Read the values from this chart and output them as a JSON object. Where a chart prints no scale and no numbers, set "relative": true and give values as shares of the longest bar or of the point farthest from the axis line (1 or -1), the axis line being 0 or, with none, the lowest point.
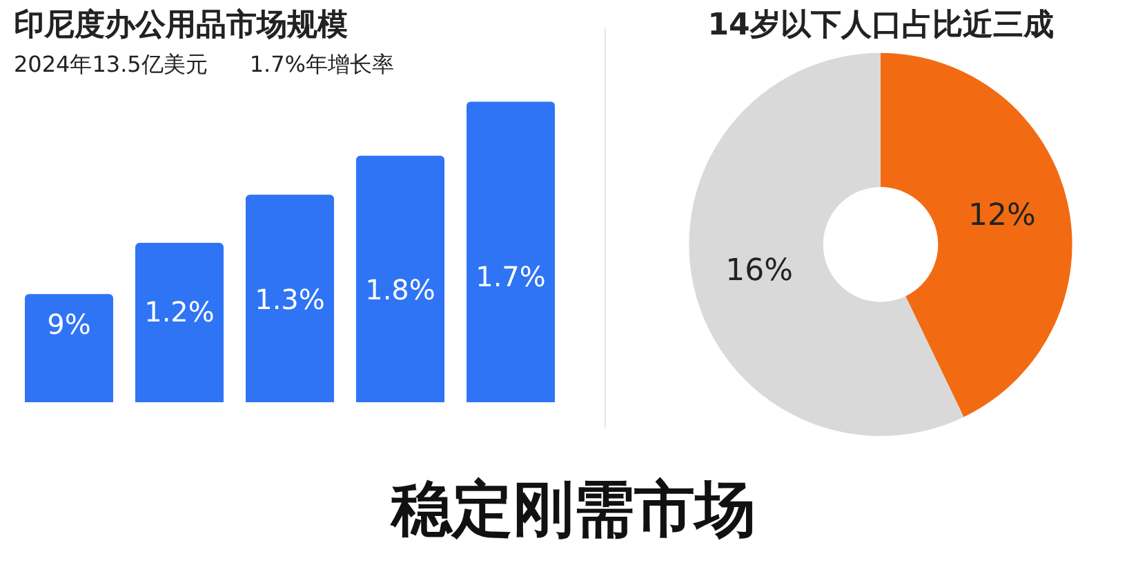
{
  "chart_data": [
    {
      "type": "bar",
      "title": "印尼度办公用品市场规模",
      "subtitle": "2024年13.5亿美元      1.7%年增长率",
      "relative": true,
      "categories": [
        null,
        null,
        null,
        null,
        null
      ],
      "values": [
        0.36,
        0.53,
        0.69,
        0.82,
        1
      ],
      "color": "#2f74f5",
      "annotations": [
        "9%",
        "1.2%",
        "1.3%",
        "1.8%",
        "1.7%"
      ],
      "legend": false
    },
    {
      "type": "donut",
      "title": "14岁以下人口占比近三成",
      "categories": [
        null,
        null
      ],
      "values": [
        12,
        16
      ],
      "colors": [
        "#f26b12",
        "#d9d9d9"
      ],
      "value_labels": [
        "12%",
        "16%"
      ],
      "legend": false
    },
    {
      "type": "other",
      "title": "稳定刚需市场"
    }
  ]
}
